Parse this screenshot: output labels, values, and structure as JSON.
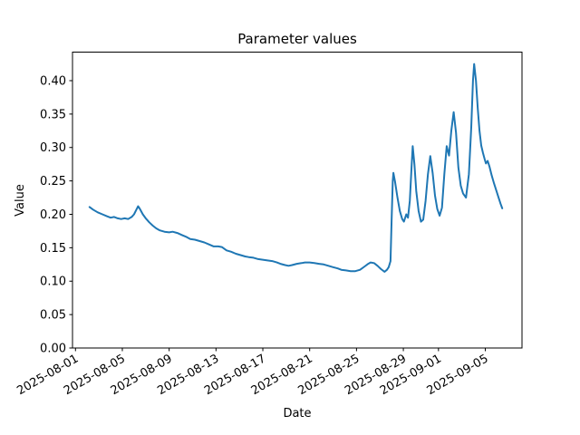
{
  "figure": {
    "title": "Parameter values",
    "xlabel": "Date",
    "ylabel": "Value"
  },
  "chart_data": {
    "type": "line",
    "title": "Parameter values",
    "xlabel": "Date",
    "ylabel": "Value",
    "grid": false,
    "legend": "none",
    "line_color": "#1f77b4",
    "background_color": "#ffffff",
    "spine_color": "#000000",
    "x_unit": "days since 2025-08-01",
    "xlim_days": [
      -0.2553,
      38.1336
    ],
    "ylim": [
      0,
      0.4427
    ],
    "x_tick_days": [
      0,
      4,
      8,
      12,
      16,
      20,
      24,
      28,
      31,
      35
    ],
    "x_tick_labels": [
      "2025-08-01",
      "2025-08-05",
      "2025-08-09",
      "2025-08-13",
      "2025-08-17",
      "2025-08-21",
      "2025-08-25",
      "2025-08-29",
      "2025-09-01",
      "2025-09-05"
    ],
    "x_tick_rotation_deg": -30,
    "y_ticks": [
      0.0,
      0.05,
      0.1,
      0.15,
      0.2,
      0.25,
      0.3,
      0.35,
      0.4
    ],
    "y_tick_labels": [
      "0.00",
      "0.05",
      "0.10",
      "0.15",
      "0.20",
      "0.25",
      "0.30",
      "0.35",
      "0.40"
    ],
    "series": [
      {
        "points": [
          [
            1.2,
            0.211
          ],
          [
            1.5,
            0.207
          ],
          [
            1.9,
            0.203
          ],
          [
            2.3,
            0.2
          ],
          [
            2.7,
            0.197
          ],
          [
            3.0,
            0.195
          ],
          [
            3.3,
            0.196
          ],
          [
            3.6,
            0.194
          ],
          [
            3.9,
            0.193
          ],
          [
            4.2,
            0.194
          ],
          [
            4.5,
            0.193
          ],
          [
            4.8,
            0.196
          ],
          [
            5.0,
            0.2
          ],
          [
            5.2,
            0.207
          ],
          [
            5.35,
            0.212
          ],
          [
            5.5,
            0.208
          ],
          [
            5.75,
            0.2
          ],
          [
            6.0,
            0.194
          ],
          [
            6.3,
            0.188
          ],
          [
            6.6,
            0.183
          ],
          [
            6.9,
            0.179
          ],
          [
            7.2,
            0.176
          ],
          [
            7.6,
            0.174
          ],
          [
            8.0,
            0.173
          ],
          [
            8.3,
            0.174
          ],
          [
            8.7,
            0.172
          ],
          [
            9.1,
            0.169
          ],
          [
            9.5,
            0.166
          ],
          [
            9.8,
            0.163
          ],
          [
            10.2,
            0.162
          ],
          [
            10.6,
            0.16
          ],
          [
            11.0,
            0.158
          ],
          [
            11.4,
            0.155
          ],
          [
            11.8,
            0.152
          ],
          [
            12.2,
            0.152
          ],
          [
            12.5,
            0.151
          ],
          [
            12.9,
            0.146
          ],
          [
            13.3,
            0.144
          ],
          [
            13.7,
            0.141
          ],
          [
            14.1,
            0.139
          ],
          [
            14.5,
            0.137
          ],
          [
            14.8,
            0.136
          ],
          [
            15.2,
            0.135
          ],
          [
            15.6,
            0.133
          ],
          [
            16.0,
            0.132
          ],
          [
            16.4,
            0.131
          ],
          [
            16.8,
            0.13
          ],
          [
            17.2,
            0.128
          ],
          [
            17.5,
            0.126
          ],
          [
            17.9,
            0.124
          ],
          [
            18.2,
            0.123
          ],
          [
            18.5,
            0.124
          ],
          [
            18.9,
            0.126
          ],
          [
            19.3,
            0.127
          ],
          [
            19.6,
            0.128
          ],
          [
            20.0,
            0.128
          ],
          [
            20.4,
            0.127
          ],
          [
            20.8,
            0.126
          ],
          [
            21.2,
            0.125
          ],
          [
            21.6,
            0.123
          ],
          [
            22.0,
            0.121
          ],
          [
            22.4,
            0.119
          ],
          [
            22.7,
            0.117
          ],
          [
            23.1,
            0.116
          ],
          [
            23.5,
            0.115
          ],
          [
            23.9,
            0.115
          ],
          [
            24.3,
            0.117
          ],
          [
            24.7,
            0.122
          ],
          [
            25.0,
            0.126
          ],
          [
            25.2,
            0.128
          ],
          [
            25.5,
            0.127
          ],
          [
            25.8,
            0.123
          ],
          [
            26.1,
            0.118
          ],
          [
            26.4,
            0.114
          ],
          [
            26.6,
            0.117
          ],
          [
            26.75,
            0.121
          ],
          [
            26.9,
            0.13
          ],
          [
            27.0,
            0.19
          ],
          [
            27.1,
            0.25
          ],
          [
            27.15,
            0.262
          ],
          [
            27.3,
            0.248
          ],
          [
            27.5,
            0.225
          ],
          [
            27.7,
            0.205
          ],
          [
            27.9,
            0.193
          ],
          [
            28.05,
            0.189
          ],
          [
            28.25,
            0.2
          ],
          [
            28.4,
            0.195
          ],
          [
            28.55,
            0.22
          ],
          [
            28.7,
            0.27
          ],
          [
            28.8,
            0.302
          ],
          [
            28.95,
            0.275
          ],
          [
            29.1,
            0.235
          ],
          [
            29.3,
            0.205
          ],
          [
            29.5,
            0.189
          ],
          [
            29.7,
            0.192
          ],
          [
            29.9,
            0.22
          ],
          [
            30.1,
            0.26
          ],
          [
            30.3,
            0.287
          ],
          [
            30.5,
            0.262
          ],
          [
            30.7,
            0.228
          ],
          [
            30.9,
            0.208
          ],
          [
            31.1,
            0.198
          ],
          [
            31.3,
            0.21
          ],
          [
            31.5,
            0.26
          ],
          [
            31.7,
            0.302
          ],
          [
            31.9,
            0.288
          ],
          [
            32.1,
            0.325
          ],
          [
            32.3,
            0.353
          ],
          [
            32.5,
            0.322
          ],
          [
            32.7,
            0.27
          ],
          [
            32.9,
            0.243
          ],
          [
            33.1,
            0.231
          ],
          [
            33.35,
            0.225
          ],
          [
            33.6,
            0.26
          ],
          [
            33.8,
            0.33
          ],
          [
            33.95,
            0.4
          ],
          [
            34.05,
            0.425
          ],
          [
            34.2,
            0.4
          ],
          [
            34.35,
            0.36
          ],
          [
            34.5,
            0.325
          ],
          [
            34.65,
            0.303
          ],
          [
            34.8,
            0.292
          ],
          [
            34.95,
            0.282
          ],
          [
            35.05,
            0.276
          ],
          [
            35.2,
            0.28
          ],
          [
            35.35,
            0.272
          ],
          [
            35.55,
            0.258
          ],
          [
            35.75,
            0.246
          ],
          [
            35.95,
            0.235
          ],
          [
            36.15,
            0.224
          ],
          [
            36.3,
            0.216
          ],
          [
            36.45,
            0.209
          ]
        ]
      }
    ]
  }
}
